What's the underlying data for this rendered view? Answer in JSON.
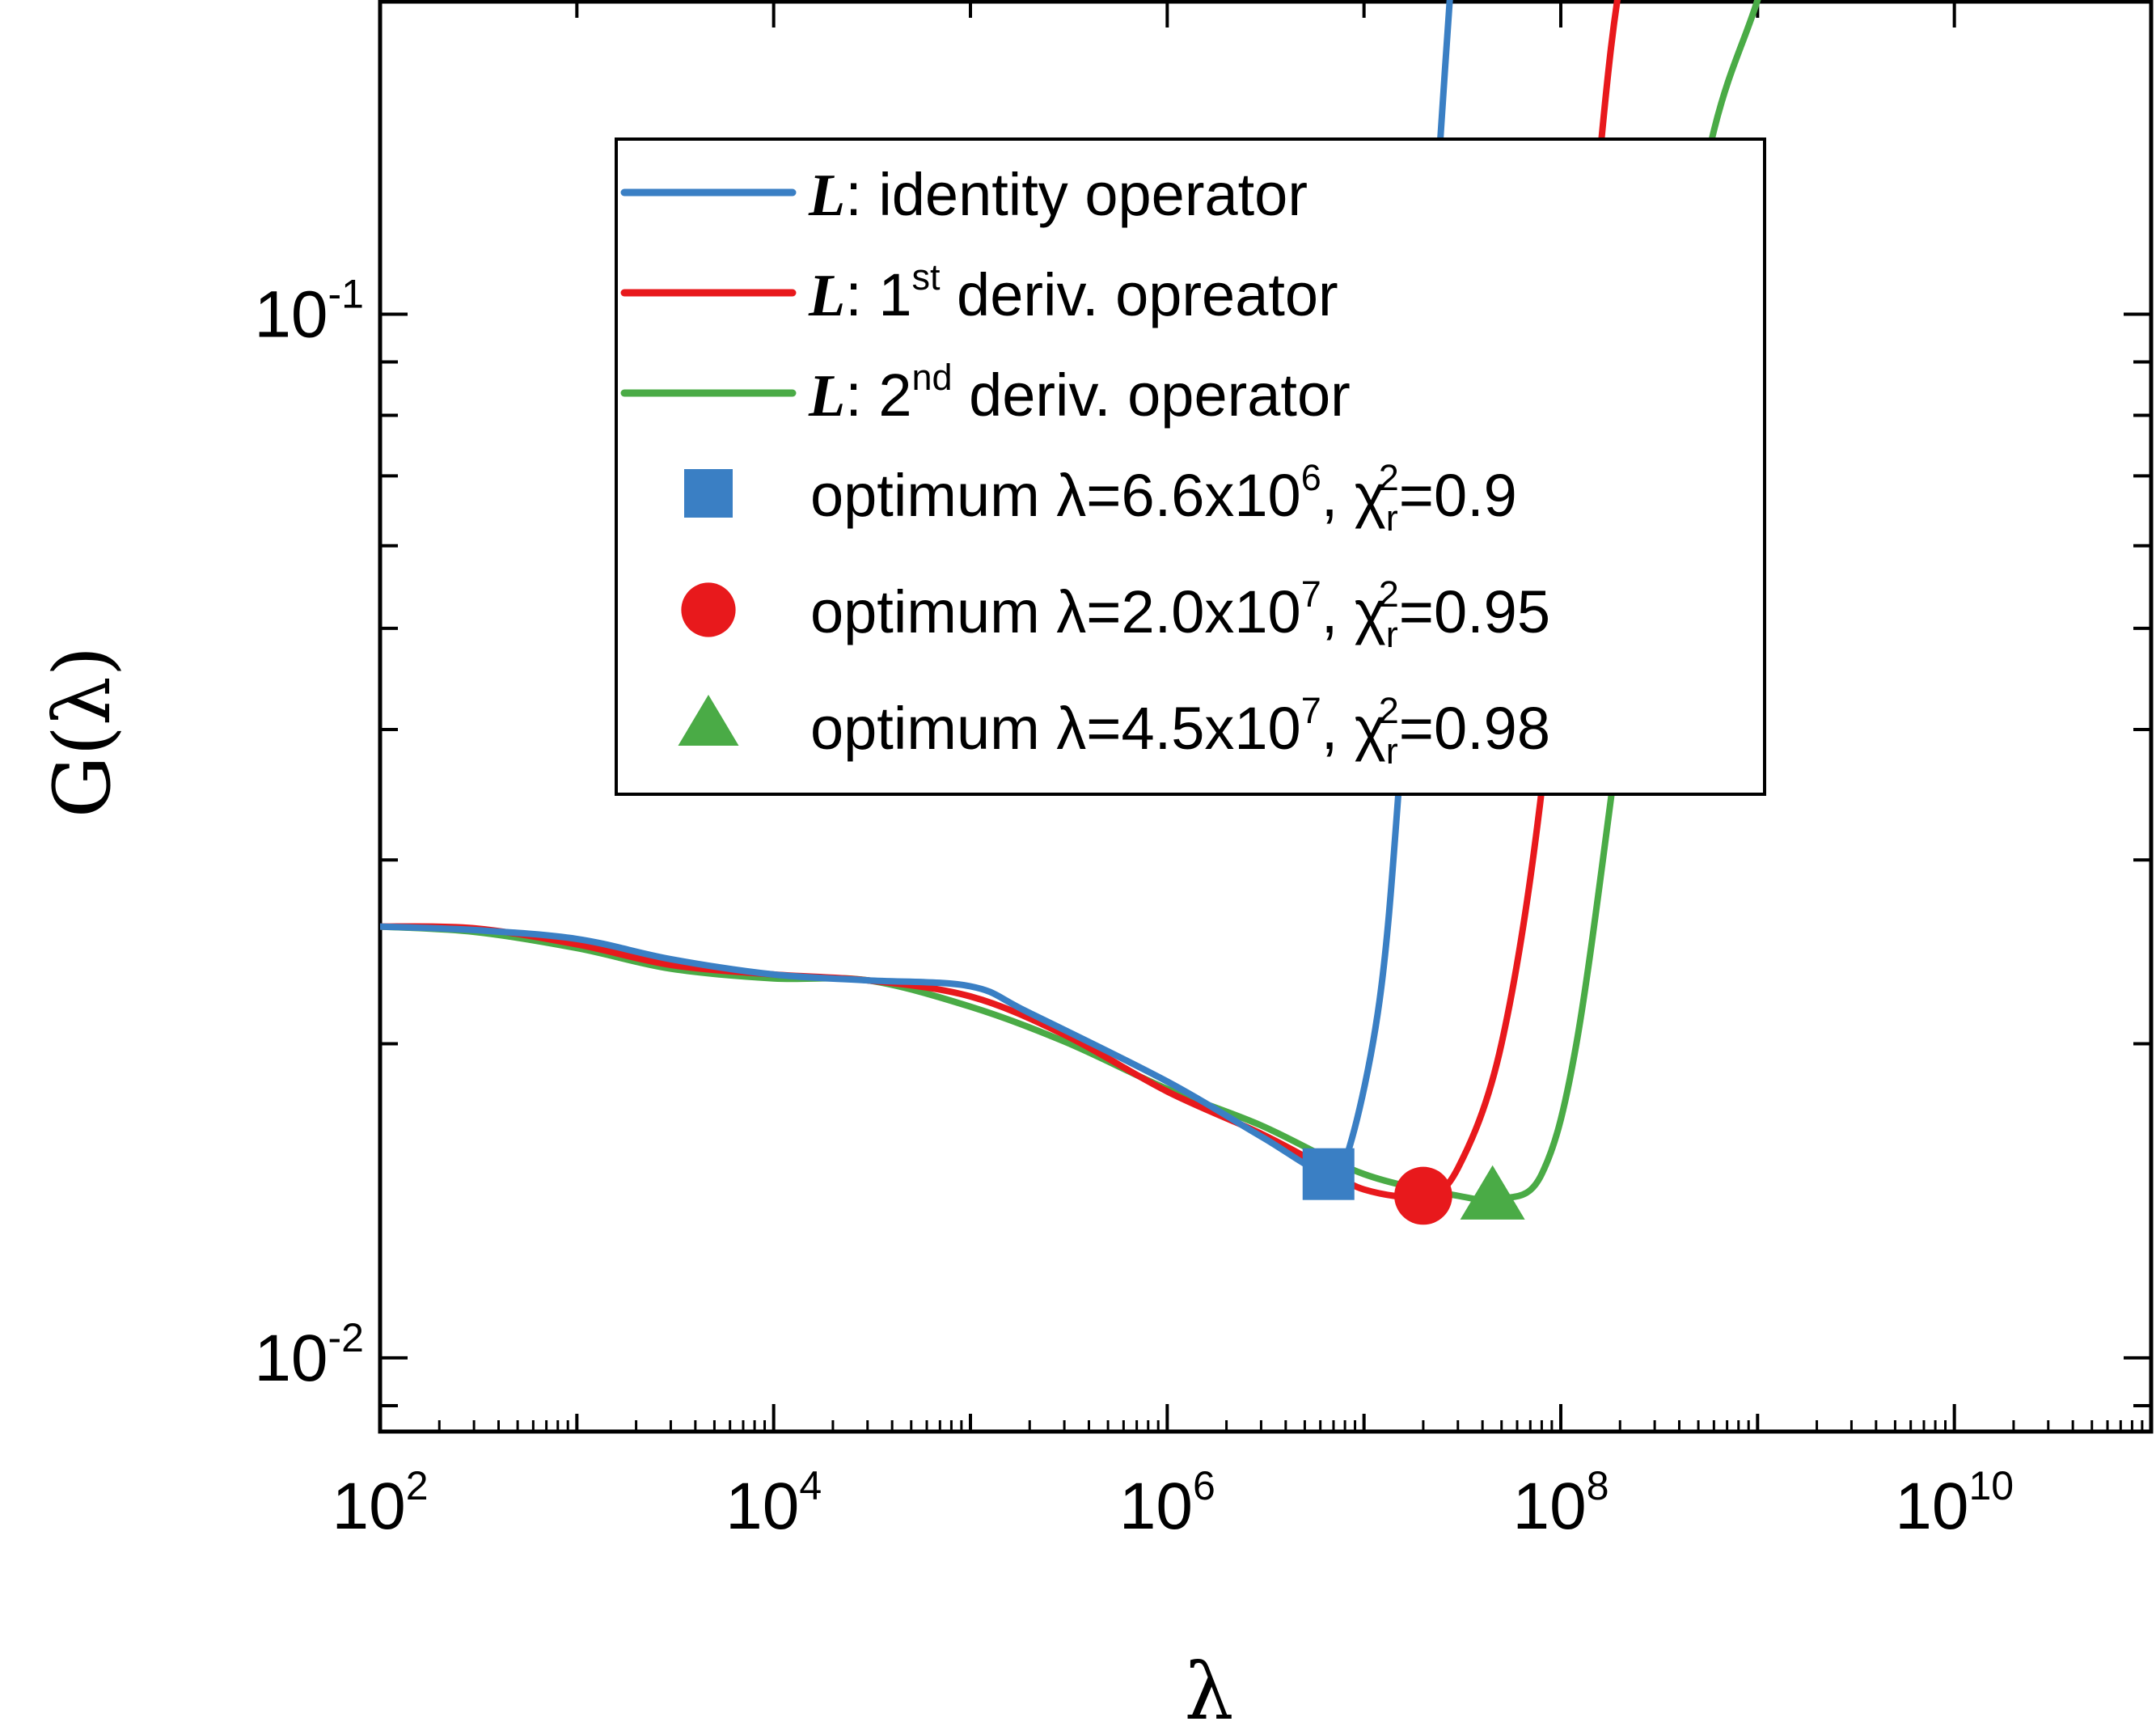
{
  "chart_data": {
    "type": "line",
    "title": "",
    "xlabel": "λ",
    "ylabel": "G(λ)",
    "xscale": "log",
    "yscale": "log",
    "xlim": [
      100,
      100000000000
    ],
    "ylim": [
      0.0085,
      0.2
    ],
    "x_ticks": [
      {
        "base": "10",
        "exp": "2"
      },
      {
        "base": "10",
        "exp": "4"
      },
      {
        "base": "10",
        "exp": "6"
      },
      {
        "base": "10",
        "exp": "8"
      },
      {
        "base": "10",
        "exp": "10"
      }
    ],
    "y_ticks": [
      {
        "base": "10",
        "exp": "-2"
      },
      {
        "base": "10",
        "exp": "-1"
      }
    ],
    "grid": false,
    "legend_position": "top-center",
    "series": [
      {
        "name": "L: identity operator",
        "legend_L": "L",
        "legend_rest": ": identity operator",
        "legend_sup": "",
        "legend_after": "",
        "color": "#3a7fc4",
        "points": [
          [
            100,
            0.0259
          ],
          [
            300,
            0.0257
          ],
          [
            1000,
            0.0252
          ],
          [
            3000,
            0.0241
          ],
          [
            10000,
            0.0233
          ],
          [
            30000,
            0.023
          ],
          [
            100000,
            0.0227
          ],
          [
            200000,
            0.0214
          ],
          [
            1000000,
            0.0184
          ],
          [
            3000000,
            0.0163
          ],
          [
            6600000,
            0.015
          ],
          [
            8500000,
            0.016
          ],
          [
            12000000,
            0.022
          ],
          [
            15000000,
            0.035
          ],
          [
            19000000,
            0.07
          ],
          [
            24000000,
            0.14
          ],
          [
            30000000,
            0.26
          ]
        ]
      },
      {
        "name": "L: 1st deriv. opreator",
        "legend_L": "L",
        "legend_rest": ": 1",
        "legend_sup": "st",
        "legend_after": " deriv. opreator",
        "color": "#e8191c",
        "points": [
          [
            100,
            0.0259
          ],
          [
            300,
            0.0258
          ],
          [
            1000,
            0.0249
          ],
          [
            3000,
            0.0238
          ],
          [
            10000,
            0.0233
          ],
          [
            30000,
            0.023
          ],
          [
            100000,
            0.0222
          ],
          [
            300000,
            0.0204
          ],
          [
            1000000,
            0.018
          ],
          [
            3000000,
            0.0164
          ],
          [
            6000000,
            0.0153
          ],
          [
            10000000,
            0.0145
          ],
          [
            20000000,
            0.0143
          ],
          [
            30000000,
            0.0152
          ],
          [
            50000000,
            0.02
          ],
          [
            80000000,
            0.035
          ],
          [
            120000000,
            0.08
          ],
          [
            180000000,
            0.18
          ],
          [
            250000000,
            0.26
          ]
        ]
      },
      {
        "name": "L: 2nd deriv. operator",
        "legend_L": "L",
        "legend_rest": ": 2",
        "legend_sup": "nd",
        "legend_after": " deriv. operator",
        "color": "#4aab46",
        "points": [
          [
            100,
            0.0259
          ],
          [
            300,
            0.0256
          ],
          [
            1000,
            0.0247
          ],
          [
            3000,
            0.0236
          ],
          [
            10000,
            0.0231
          ],
          [
            30000,
            0.023
          ],
          [
            100000,
            0.0217
          ],
          [
            300000,
            0.0201
          ],
          [
            1000000,
            0.0181
          ],
          [
            3000000,
            0.0167
          ],
          [
            10000000,
            0.015
          ],
          [
            30000000,
            0.0143
          ],
          [
            50000000,
            0.0142
          ],
          [
            80000000,
            0.015
          ],
          [
            120000000,
            0.02
          ],
          [
            200000000,
            0.04
          ],
          [
            350000000,
            0.09
          ],
          [
            600000000,
            0.15
          ],
          [
            1000000000,
            0.2
          ],
          [
            1500000000,
            0.26
          ]
        ]
      }
    ],
    "optimum_points": [
      {
        "name": "optimum λ=6.6x10^6, χr^2=0.9",
        "label_pre": "optimum λ=6.6x10",
        "label_exp": "6",
        "label_mid": ", χ",
        "label_sub": "r",
        "label_sup": "2",
        "label_post": "=0.9",
        "marker": "square",
        "color": "#3a7fc4",
        "x": 6600000,
        "y": 0.015
      },
      {
        "name": "optimum λ=2.0x10^7, χr^2=0.95",
        "label_pre": "optimum λ=2.0x10",
        "label_exp": "7",
        "label_mid": ", χ",
        "label_sub": "r",
        "label_sup": "2",
        "label_post": "=0.95",
        "marker": "circle",
        "color": "#e8191c",
        "x": 20000000,
        "y": 0.0143
      },
      {
        "name": "optimum λ=4.5x10^7, χr^2=0.98",
        "label_pre": "optimum λ=4.5x10",
        "label_exp": "7",
        "label_mid": ", χ",
        "label_sub": "r",
        "label_sup": "2",
        "label_post": "=0.98",
        "marker": "triangle",
        "color": "#4aab46",
        "x": 45000000,
        "y": 0.0142
      }
    ]
  }
}
